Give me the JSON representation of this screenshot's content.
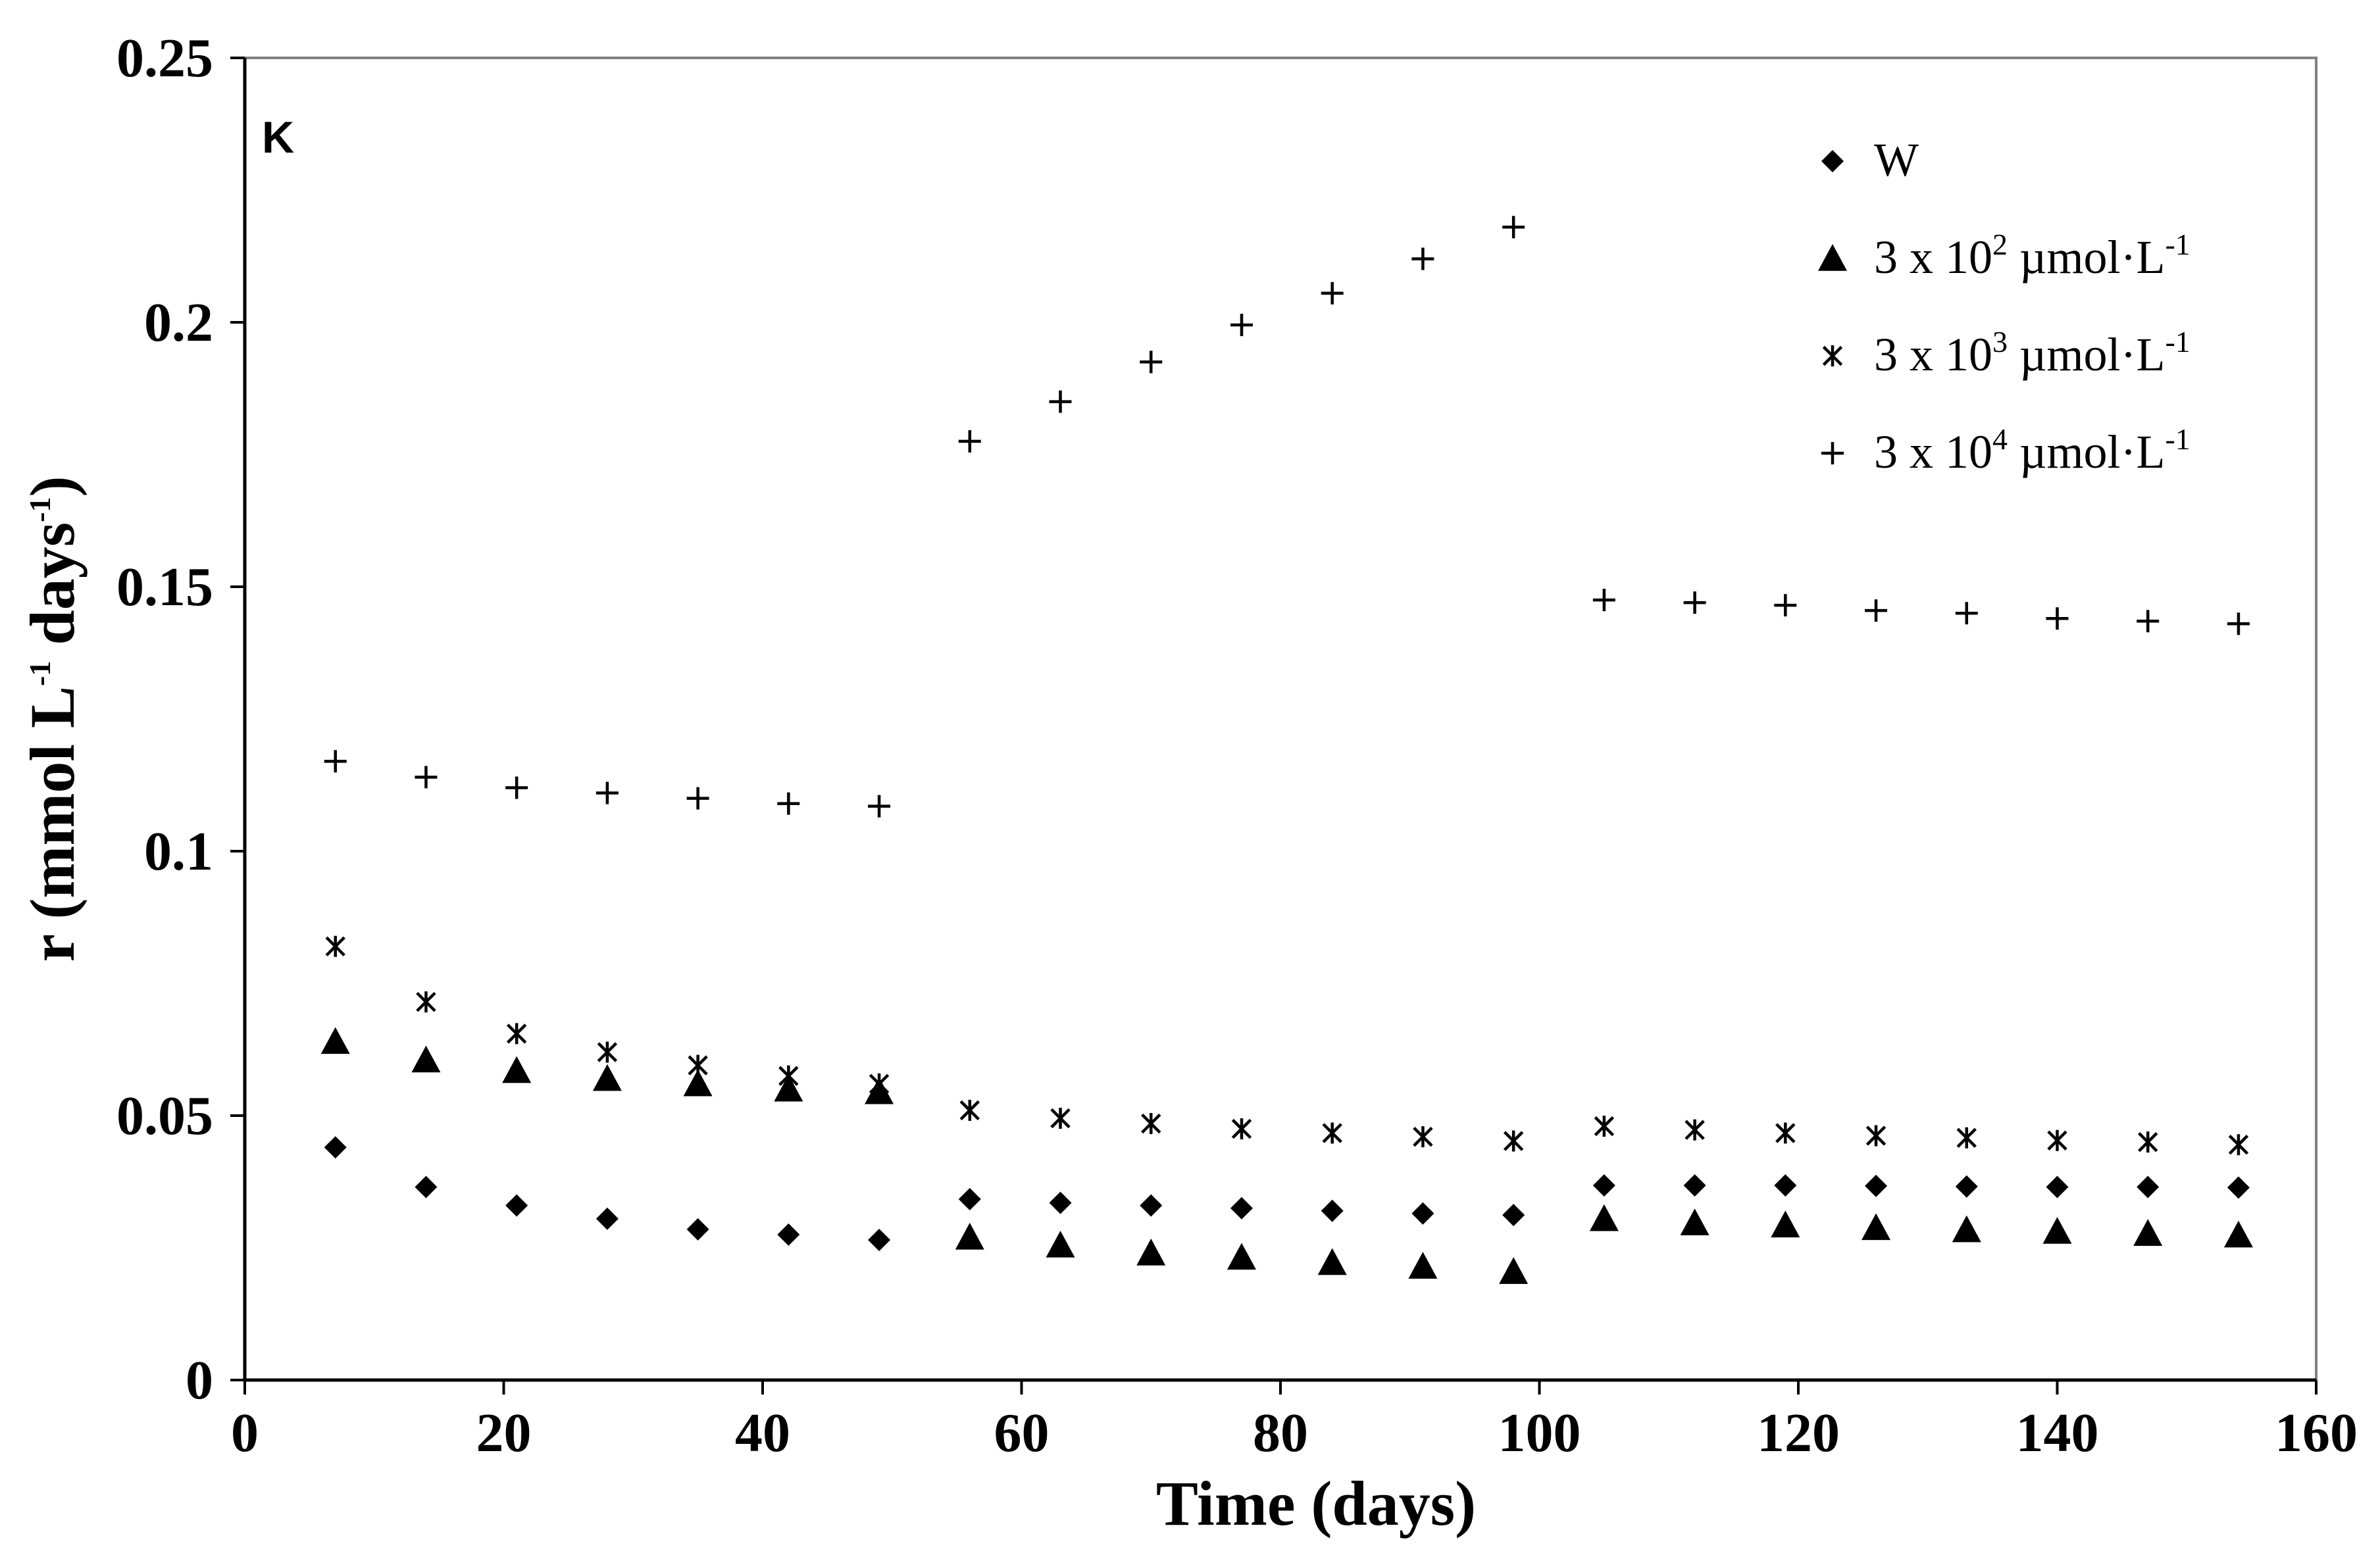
{
  "chart_data": {
    "type": "scatter",
    "panel_label": "K",
    "xlabel": "Time (days)",
    "ylabel": {
      "pre": "r (mmol L",
      "sup1": "-1",
      "mid": " days",
      "sup2": "-1",
      "post": ")"
    },
    "xlim": [
      0,
      160
    ],
    "ylim": [
      0,
      0.25
    ],
    "x_ticks": [
      "0",
      "20",
      "40",
      "60",
      "80",
      "100",
      "120",
      "140",
      "160"
    ],
    "y_ticks": [
      "0",
      "0.05",
      "0.1",
      "0.15",
      "0.2",
      "0.25"
    ],
    "x": [
      7,
      14,
      21,
      28,
      35,
      42,
      49,
      56,
      63,
      70,
      77,
      84,
      91,
      98,
      105,
      112,
      119,
      126,
      133,
      140,
      147,
      154
    ],
    "series": [
      {
        "name": "W",
        "legend": {
          "main": "W",
          "sup": "",
          "rest": ""
        },
        "marker": "diamond",
        "values": [
          0.044,
          0.0365,
          0.033,
          0.0305,
          0.0285,
          0.0275,
          0.0265,
          0.0342,
          0.0335,
          0.033,
          0.0325,
          0.032,
          0.0315,
          0.0312,
          0.0368,
          0.0368,
          0.0368,
          0.0367,
          0.0366,
          0.0365,
          0.0365,
          0.0364
        ]
      },
      {
        "name": "3 x 10^2 µmol·L^-1",
        "legend": {
          "main": "3 x 10",
          "sup": "2",
          "rest": " µmol·L",
          "sup2": "-1"
        },
        "marker": "triangle",
        "values": [
          0.064,
          0.0605,
          0.0585,
          0.057,
          0.056,
          0.055,
          0.0545,
          0.027,
          0.0255,
          0.024,
          0.0232,
          0.0222,
          0.0215,
          0.0205,
          0.0305,
          0.0297,
          0.0293,
          0.0288,
          0.0284,
          0.0281,
          0.0277,
          0.0274
        ]
      },
      {
        "name": "3 x 10^3 µmol·L^-1",
        "legend": {
          "main": "3 x 10",
          "sup": "3",
          "rest": " µmol·L",
          "sup2": "-1"
        },
        "marker": "asterisk",
        "values": [
          0.082,
          0.0715,
          0.0655,
          0.062,
          0.0595,
          0.0575,
          0.056,
          0.051,
          0.0495,
          0.0485,
          0.0475,
          0.0467,
          0.046,
          0.0452,
          0.048,
          0.0473,
          0.0467,
          0.0462,
          0.0458,
          0.0453,
          0.045,
          0.0445
        ]
      },
      {
        "name": "3 x 10^4 µmol·L^-1",
        "legend": {
          "main": "3 x 10",
          "sup": "4",
          "rest": " µmol·L",
          "sup2": "-1"
        },
        "marker": "plus",
        "values": [
          0.117,
          0.114,
          0.112,
          0.111,
          0.11,
          0.109,
          0.1085,
          0.1775,
          0.185,
          0.1925,
          0.1995,
          0.2055,
          0.212,
          0.218,
          0.1475,
          0.147,
          0.1465,
          0.1455,
          0.145,
          0.144,
          0.1435,
          0.143
        ]
      }
    ],
    "legend_position": "top-right",
    "grid": false
  }
}
